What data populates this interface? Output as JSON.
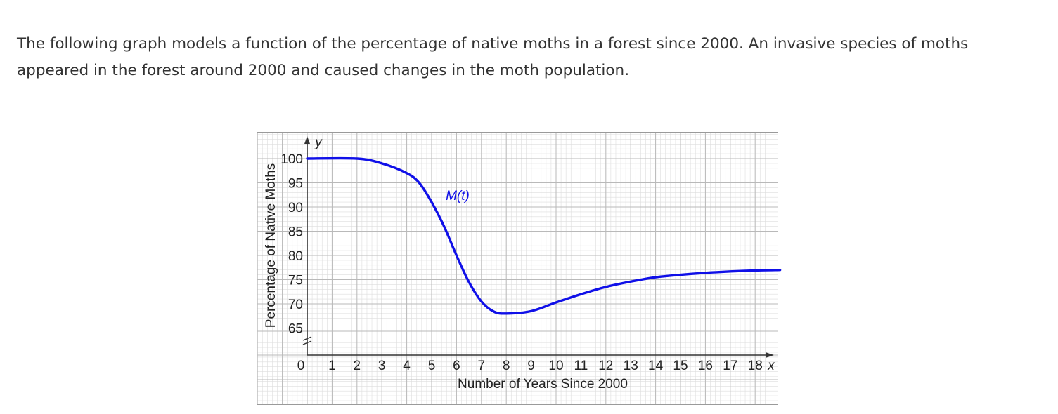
{
  "intro_text": "The following graph models a function of the percentage of native moths in a forest since 2000. An invasive species of moths appeared in the forest around 2000 and caused changes in the moth population.",
  "colors": {
    "curve": "#1010e8",
    "grid": "#b9b9b9",
    "axis": "#333333",
    "text": "#333333"
  },
  "chart_data": {
    "type": "line",
    "xlabel": "Number of Years Since 2000",
    "ylabel": "Percentage of Native Moths",
    "x_axis_letter": "x",
    "y_axis_letter": "y",
    "curve_label": "M(t)",
    "x_ticks": [
      "0",
      "1",
      "2",
      "3",
      "4",
      "5",
      "6",
      "7",
      "8",
      "9",
      "10",
      "11",
      "12",
      "13",
      "14",
      "15",
      "16",
      "17",
      "18"
    ],
    "y_ticks": [
      "65",
      "70",
      "75",
      "80",
      "85",
      "90",
      "95",
      "100"
    ],
    "xlim": [
      0,
      19
    ],
    "ylim": [
      65,
      100
    ],
    "y_axis_break": true,
    "grid": true,
    "series": [
      {
        "x": [
          0,
          2,
          3,
          4,
          4.5,
          5,
          5.5,
          6,
          6.5,
          7,
          7.5,
          8,
          9,
          10,
          11,
          12,
          13,
          14,
          15,
          16,
          17,
          18,
          19
        ],
        "y": [
          100,
          100,
          99,
          97,
          95,
          91,
          86,
          80,
          74.5,
          70.5,
          68.4,
          68,
          68.5,
          70.3,
          72,
          73.5,
          74.6,
          75.5,
          76,
          76.4,
          76.7,
          76.9,
          77
        ]
      }
    ]
  }
}
